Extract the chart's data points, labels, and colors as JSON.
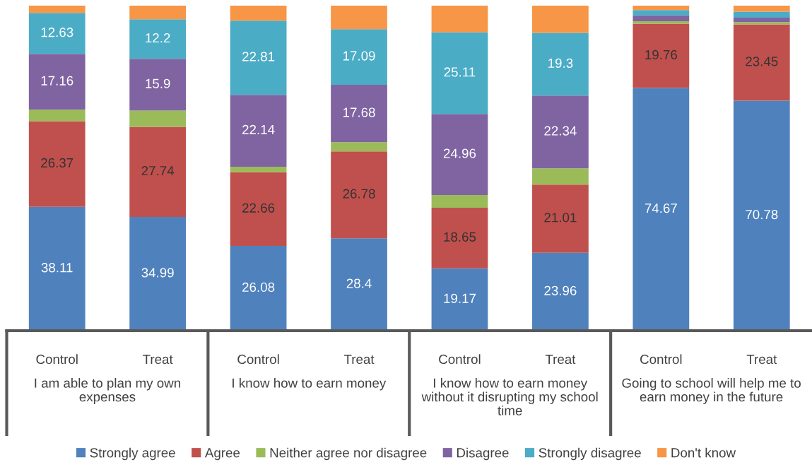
{
  "chart_data": {
    "type": "bar",
    "stacked": true,
    "legend": "bottom",
    "categories": [
      "Control",
      "Treat",
      "Control",
      "Treat",
      "Control",
      "Treat",
      "Control",
      "Treat"
    ],
    "annotations": [
      "I am able to plan my own expenses",
      "I know how to earn money",
      "I know how to earn money without it disrupting my school time",
      "Going to school will help me to earn money in the future"
    ],
    "series": [
      {
        "name": "Strongly agree",
        "color": "#4f81bd",
        "values": [
          38.11,
          34.99,
          26.08,
          28.4,
          19.17,
          23.96,
          74.67,
          70.78
        ],
        "value_labels": [
          "38.11",
          "34.99",
          "26.08",
          "28.4",
          "19.17",
          "23.96",
          "74.67",
          "70.78"
        ]
      },
      {
        "name": "Agree",
        "color": "#c0504d",
        "values": [
          26.37,
          27.74,
          22.66,
          26.78,
          18.65,
          21.01,
          19.76,
          23.45
        ],
        "value_labels": [
          "26.37",
          "27.74",
          "22.66",
          "26.78",
          "18.65",
          "21.01",
          "19.76",
          "23.45"
        ]
      },
      {
        "name": "Neither agree nor disagree",
        "color": "#9bbb59",
        "values": [
          3.5,
          5.0,
          1.7,
          2.8,
          3.9,
          5.0,
          0.8,
          0.7
        ],
        "value_labels": [
          null,
          null,
          null,
          null,
          null,
          null,
          null,
          null
        ]
      },
      {
        "name": "Disagree",
        "color": "#8064a2",
        "values": [
          17.16,
          15.9,
          22.14,
          17.68,
          24.96,
          22.34,
          1.8,
          1.4
        ],
        "value_labels": [
          "17.16",
          "15.9",
          "22.14",
          "17.68",
          "24.96",
          "22.34",
          null,
          null
        ]
      },
      {
        "name": "Strongly disagree",
        "color": "#4bacc6",
        "values": [
          12.63,
          12.2,
          22.81,
          17.09,
          25.11,
          19.3,
          1.6,
          1.8
        ],
        "value_labels": [
          "12.63",
          "12.2",
          "22.81",
          "17.09",
          "25.11",
          "19.3",
          null,
          null
        ]
      },
      {
        "name": "Don't know",
        "color": "#f79646",
        "values": [
          2.23,
          4.17,
          4.61,
          7.25,
          8.21,
          8.39,
          1.37,
          1.87
        ],
        "value_labels": [
          null,
          null,
          null,
          null,
          null,
          null,
          null,
          null
        ]
      }
    ]
  }
}
